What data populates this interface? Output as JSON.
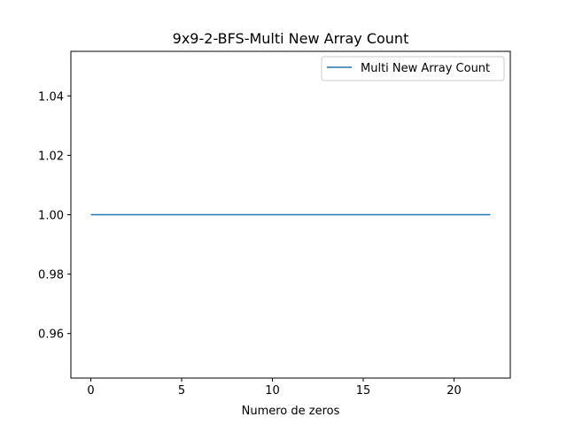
{
  "chart_data": {
    "type": "line",
    "title": "9x9-2-BFS-Multi New Array Count",
    "xlabel": "Numero de zeros",
    "ylabel": "",
    "xlim": [
      -1.1,
      23.1
    ],
    "ylim": [
      0.945,
      1.055
    ],
    "x_ticks": [
      0,
      5,
      10,
      15,
      20
    ],
    "x_tick_labels": [
      "0",
      "5",
      "10",
      "15",
      "20"
    ],
    "y_ticks": [
      0.96,
      0.98,
      1.0,
      1.02,
      1.04
    ],
    "y_tick_labels": [
      "0.96",
      "0.98",
      "1.00",
      "1.02",
      "1.04"
    ],
    "grid": false,
    "legend_position": "top-right",
    "series": [
      {
        "name": "Multi New Array Count",
        "color": "#1f77b4",
        "x": [
          0,
          22
        ],
        "y": [
          1,
          1
        ]
      }
    ]
  }
}
